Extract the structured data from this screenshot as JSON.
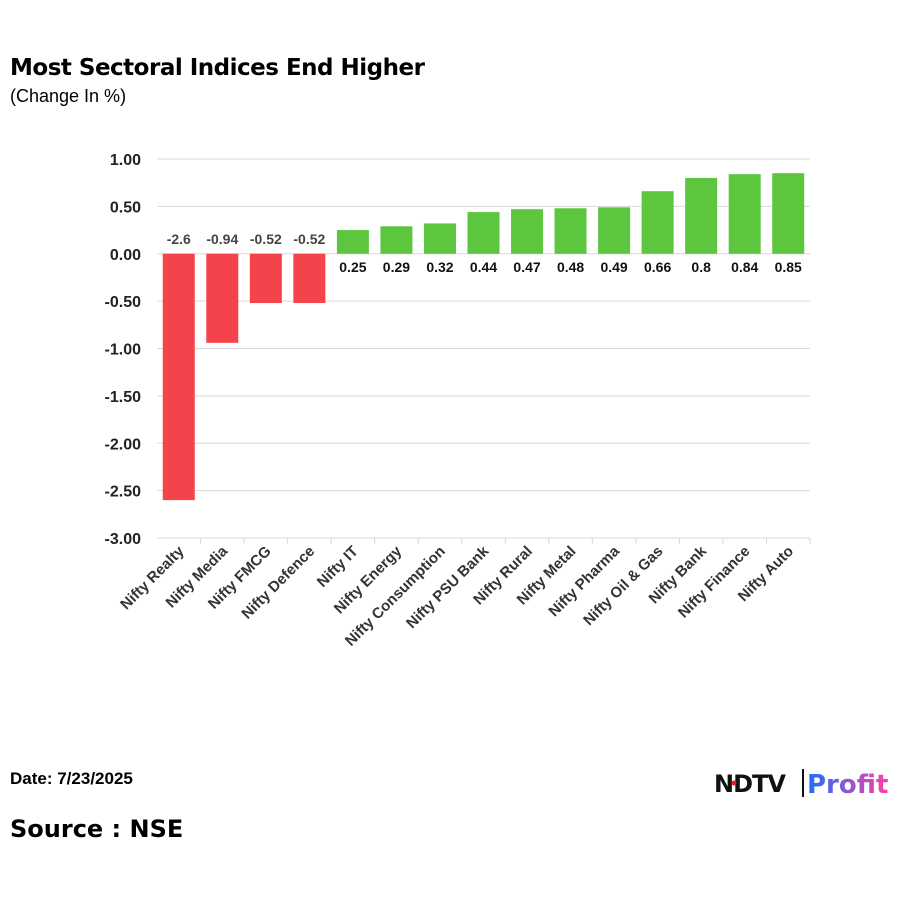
{
  "chart_data": {
    "type": "bar",
    "title": "Most Sectoral Indices End Higher",
    "subtitle": "(Change In %)",
    "categories": [
      "Nifty Realty",
      "Nifty Media",
      "Nifty FMCG",
      "Nifty Defence",
      "Nifty IT",
      "Nifty Energy",
      "Nifty Consumption",
      "Nifty PSU Bank",
      "Nifty Rural",
      "Nifty Metal",
      "Nifty Pharma",
      "Nifty Oil & Gas",
      "Nifty Bank",
      "Nifty Finance",
      "Nifty Auto"
    ],
    "values": [
      -2.6,
      -0.94,
      -0.52,
      -0.52,
      0.25,
      0.29,
      0.32,
      0.44,
      0.47,
      0.48,
      0.49,
      0.66,
      0.8,
      0.84,
      0.85
    ],
    "data_labels": [
      "-2.6",
      "-0.94",
      "-0.52",
      "-0.52",
      "0.25",
      "0.29",
      "0.32",
      "0.44",
      "0.47",
      "0.48",
      "0.49",
      "0.66",
      "0.8",
      "0.84",
      "0.85"
    ],
    "ylim": [
      -3,
      1
    ],
    "yticks": [
      1,
      0.5,
      0,
      -0.5,
      -1,
      -1.5,
      -2,
      -2.5,
      -3
    ],
    "ytick_labels": [
      "1.00",
      "0.50",
      "0.00",
      "-0.50",
      "-1.00",
      "-1.50",
      "-2.00",
      "-2.50",
      "-3.00"
    ],
    "grid": true,
    "colors": {
      "positive": "#5cc63f",
      "negative": "#f4434b",
      "grid": "#d9d9d9"
    }
  },
  "footer": {
    "date": "Date: 7/23/2025",
    "source": "Source : NSE",
    "logo": "NDTV Profit"
  }
}
